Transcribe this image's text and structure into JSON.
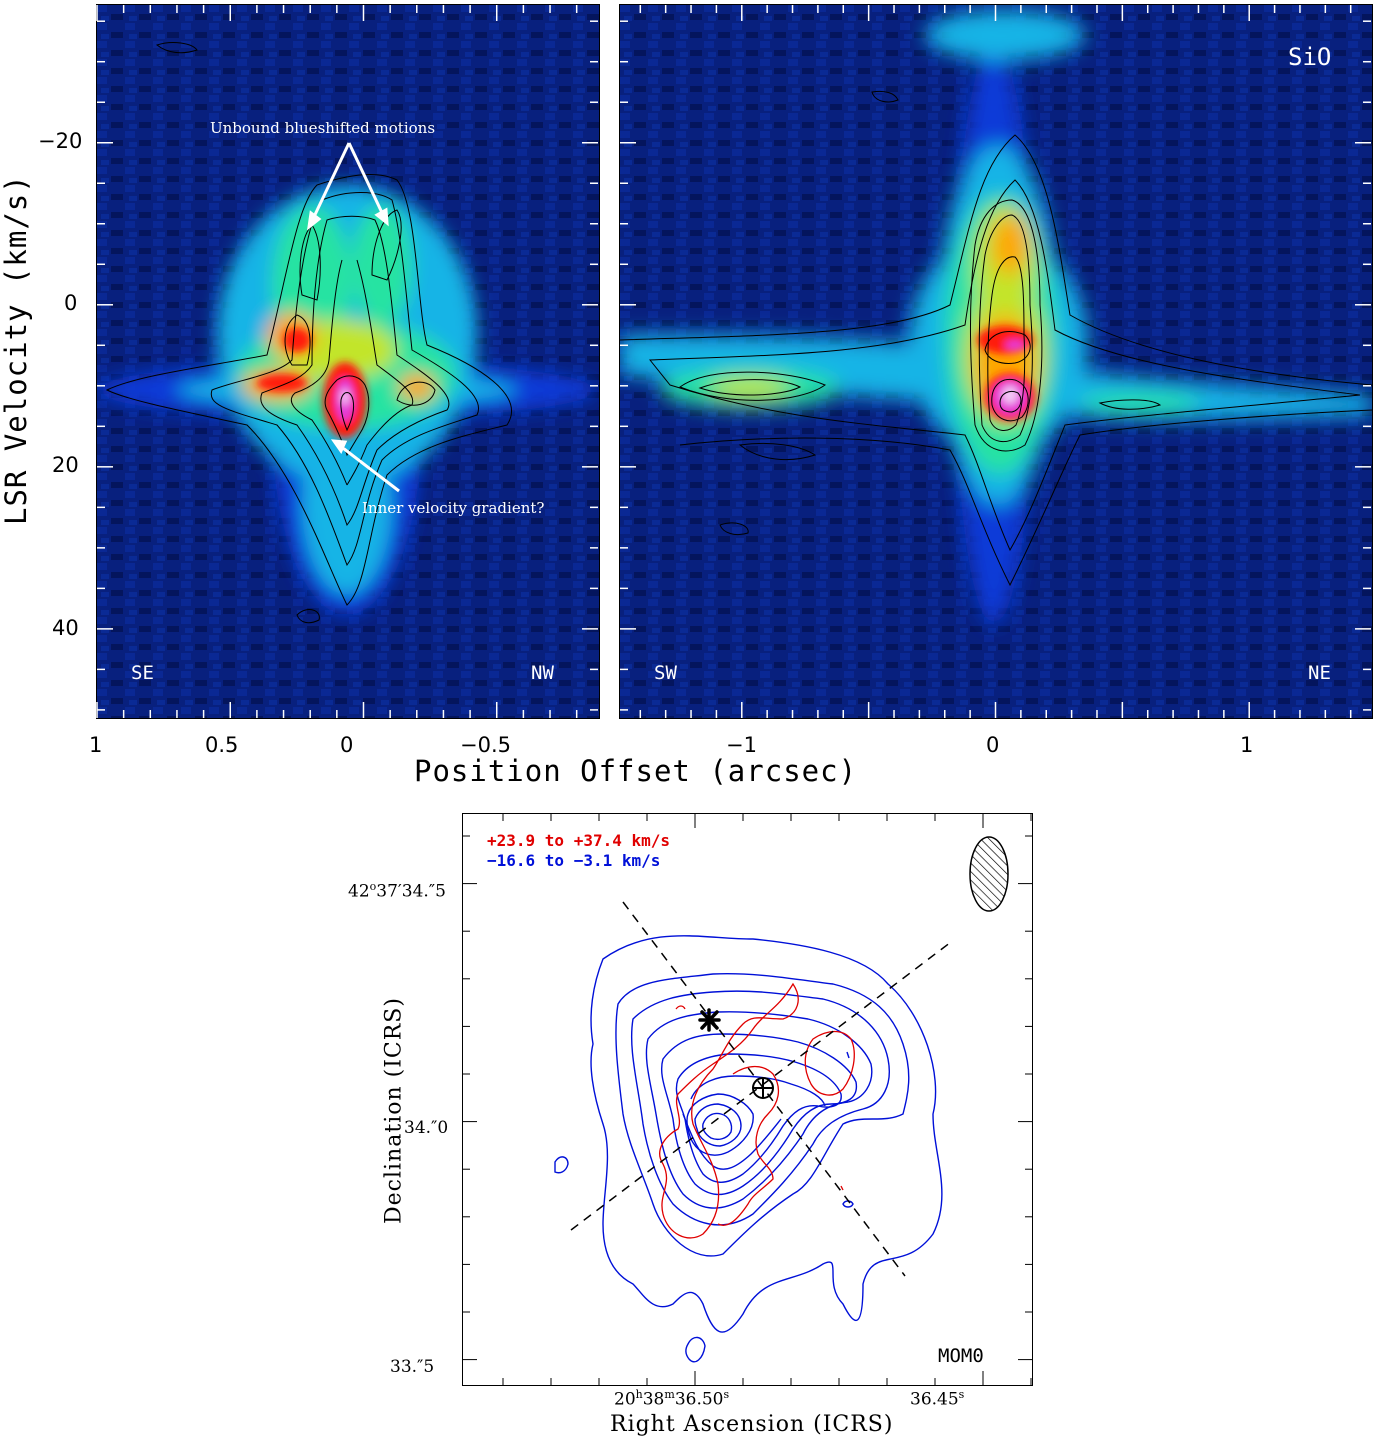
{
  "chart_data": [
    {
      "type": "heatmap",
      "panel": "position-velocity diagram",
      "ylabel": "LSR Velocity (km/s)",
      "xlabel": "Position Offset (arcsec)",
      "y_ticks": [
        "−20",
        "0",
        "20",
        "40"
      ],
      "y_tick_values": [
        -20,
        0,
        20,
        40
      ],
      "ylim": [
        -37,
        51
      ],
      "x_ticks": [
        "1",
        "0.5",
        "0",
        "−0.5"
      ],
      "x_tick_values": [
        1,
        0.5,
        0,
        -0.5
      ],
      "xlim": [
        1.0,
        -0.88
      ],
      "corner_left": "SE",
      "corner_right": "NW",
      "annotations": [
        "Unbound blueshifted motions",
        "Inner velocity gradient?"
      ],
      "colormap": [
        "#061566",
        "#0a3ad8",
        "#18b4e6",
        "#27e3a2",
        "#c2e52b",
        "#ffa500",
        "#ff1a0c",
        "#e53ad8",
        "#f3c9f6"
      ]
    },
    {
      "type": "heatmap",
      "panel": "position-velocity diagram",
      "title": "SiO",
      "x_ticks": [
        "−1",
        "0",
        "1"
      ],
      "x_tick_values": [
        -1,
        0,
        1
      ],
      "xlim": [
        -1.48,
        1.48
      ],
      "ylim": [
        -37,
        51
      ],
      "corner_left": "SW",
      "corner_right": "NE"
    },
    {
      "type": "contour",
      "panel": "MOM0 map",
      "label": "MOM0",
      "legend": [
        {
          "text": "+23.9 to +37.4 km/s",
          "color": "#e00000"
        },
        {
          "text": "−16.6 to −3.1  km/s",
          "color": "#0010d8"
        }
      ],
      "xlabel": "Right Ascension (ICRS)",
      "ylabel": "Declination (ICRS)",
      "ra_ticks": [
        "20h38m36.s50",
        "36.s45"
      ],
      "dec_ticks": [
        "42°37′34.″5",
        "34.″0",
        "33.″5"
      ]
    }
  ],
  "pv_left": {
    "corner_left": "SE",
    "corner_right": "NW",
    "annot_top": "Unbound blueshifted motions",
    "annot_bottom": "Inner velocity gradient?",
    "y_ticks": [
      "−20",
      "0",
      "20",
      "40"
    ],
    "x_ticks": [
      "1",
      "0.5",
      "0",
      "−0.5"
    ]
  },
  "pv_right": {
    "title": "SiO",
    "corner_left": "SW",
    "corner_right": "NE",
    "x_ticks": [
      "−1",
      "0",
      "1"
    ]
  },
  "axes": {
    "pv_ylabel": "LSR Velocity (km/s)",
    "pv_xlabel": "Position Offset (arcsec)"
  },
  "mom0": {
    "label": "MOM0",
    "legend_red": "+23.9 to +37.4 km/s",
    "legend_blue": "−16.6 to −3.1  km/s",
    "xlabel": "Right Ascension (ICRS)",
    "ylabel": "Declination (ICRS)",
    "ra_major": "20",
    "ra_h": "h",
    "ra_mid": "38",
    "ra_m": "m",
    "ra_sec": "36.50",
    "ra_s": "s",
    "ra_right": "36.45",
    "dec_top_deg": "42",
    "dec_top_rest": "37′34.″5",
    "dec_mid": "34.″0",
    "dec_bot": "33.″5"
  }
}
